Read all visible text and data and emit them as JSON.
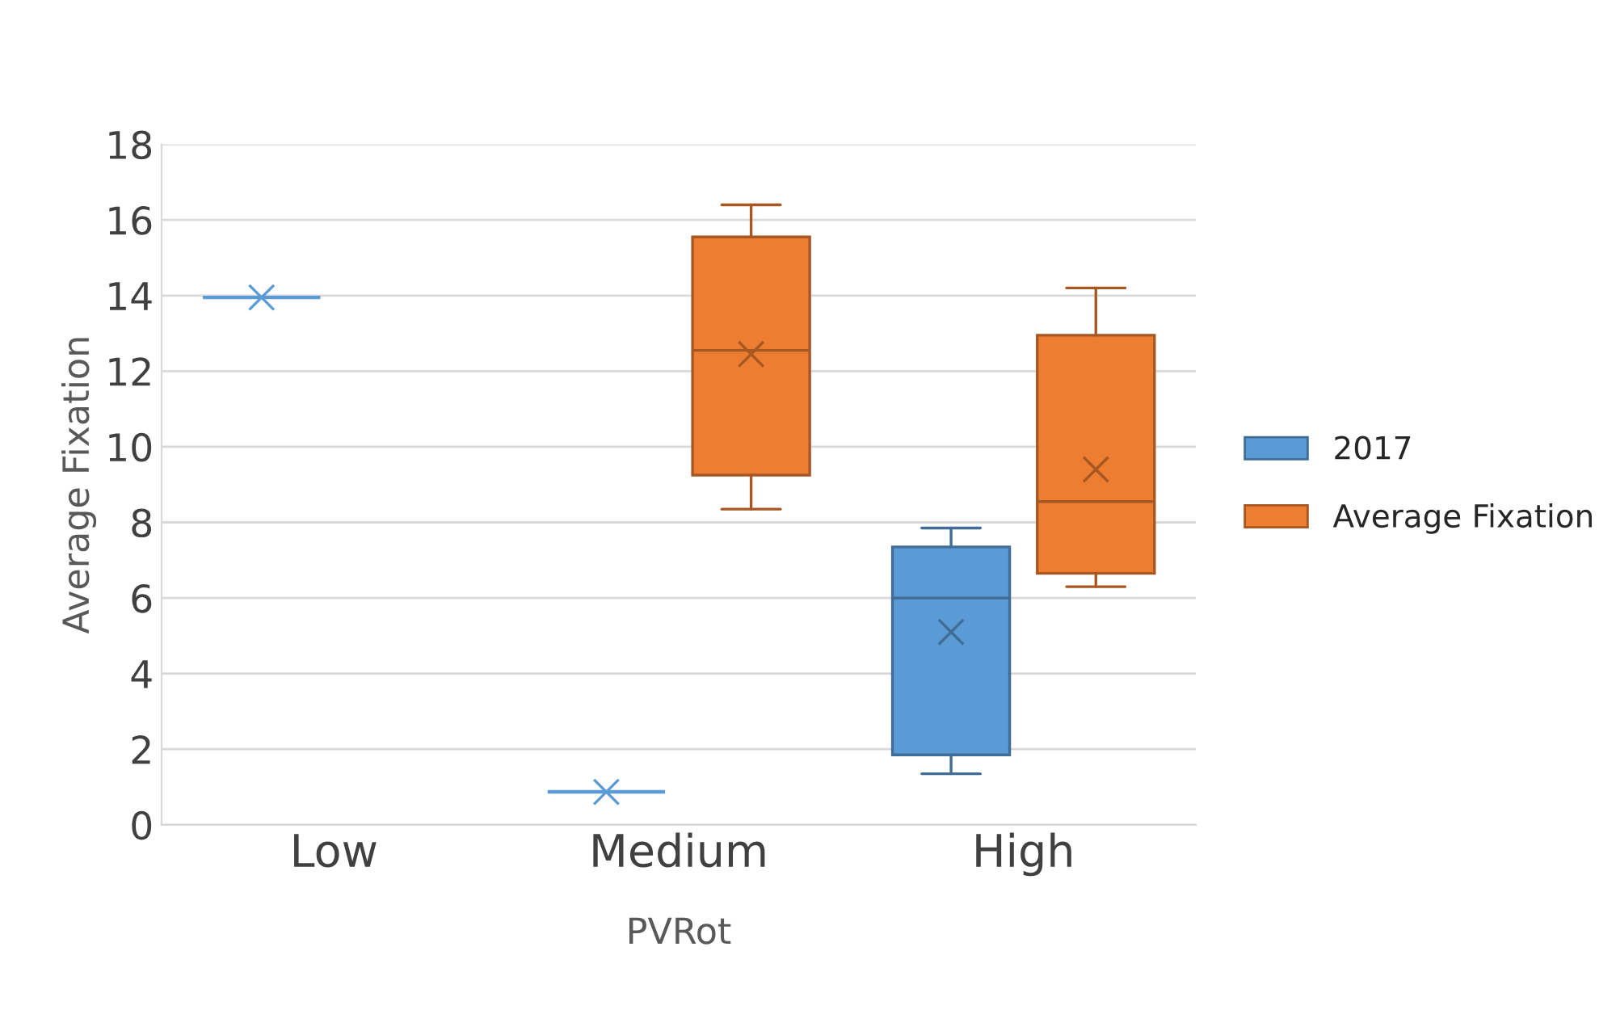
{
  "chart_data": {
    "type": "box",
    "xlabel": "PVRot",
    "ylabel": "Average Fixation",
    "categories": [
      "Low",
      "Medium",
      "High"
    ],
    "series": [
      {
        "name": "2017",
        "color": "#5b9bd5",
        "boxes": [
          {
            "low": 13.95,
            "q1": 13.95,
            "median": 13.95,
            "q3": 13.95,
            "high": 13.95,
            "mean": 13.95
          },
          {
            "low": 0.87,
            "q1": 0.87,
            "median": 0.87,
            "q3": 0.87,
            "high": 0.87,
            "mean": 0.87
          },
          {
            "low": 1.35,
            "q1": 1.85,
            "median": 6.0,
            "q3": 7.35,
            "high": 7.85,
            "mean": 5.1
          }
        ]
      },
      {
        "name": "Average Fixation",
        "color": "#ed7d31",
        "boxes": [
          null,
          {
            "low": 8.35,
            "q1": 9.25,
            "median": 12.55,
            "q3": 15.55,
            "high": 16.4,
            "mean": 12.45
          },
          {
            "low": 6.3,
            "q1": 6.65,
            "median": 8.55,
            "q3": 12.95,
            "high": 14.2,
            "mean": 9.4
          }
        ]
      }
    ],
    "ylim": [
      0,
      18
    ],
    "yticks": [
      0,
      2,
      4,
      6,
      8,
      10,
      12,
      14,
      16,
      18
    ],
    "grid": "y",
    "legend": "right"
  }
}
